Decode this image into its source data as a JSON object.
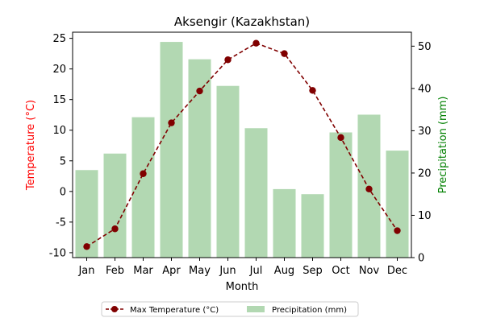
{
  "chart_data": {
    "type": "bar+line",
    "title": "Aksengir (Kazakhstan)",
    "xlabel": "Month",
    "categories": [
      "Jan",
      "Feb",
      "Mar",
      "Apr",
      "May",
      "Jun",
      "Jul",
      "Aug",
      "Sep",
      "Oct",
      "Nov",
      "Dec"
    ],
    "left_axis": {
      "label": "Temperature (°C)",
      "ylim": [
        -10.8,
        26.0
      ],
      "ticks": [
        -10,
        -5,
        0,
        5,
        10,
        15,
        20,
        25
      ],
      "color": "#ff0000"
    },
    "right_axis": {
      "label": "Precipitation (mm)",
      "ylim": [
        0,
        53.3
      ],
      "ticks": [
        0,
        10,
        20,
        30,
        40,
        50
      ],
      "color": "#008000"
    },
    "series": [
      {
        "name": "Max Temperature (°C)",
        "type": "line",
        "axis": "left",
        "color": "#800000",
        "values": [
          -9.0,
          -6.1,
          2.9,
          11.2,
          16.4,
          21.5,
          24.2,
          22.5,
          16.5,
          8.8,
          0.4,
          -6.4
        ]
      },
      {
        "name": "Precipitation (mm)",
        "type": "bar",
        "axis": "right",
        "color": "#b2d8b2",
        "values": [
          20.7,
          24.6,
          33.2,
          51.0,
          46.9,
          40.6,
          30.6,
          16.2,
          15.0,
          29.6,
          33.8,
          25.3
        ]
      }
    ],
    "legend": {
      "placement": "bottom-center"
    },
    "grid": false
  }
}
